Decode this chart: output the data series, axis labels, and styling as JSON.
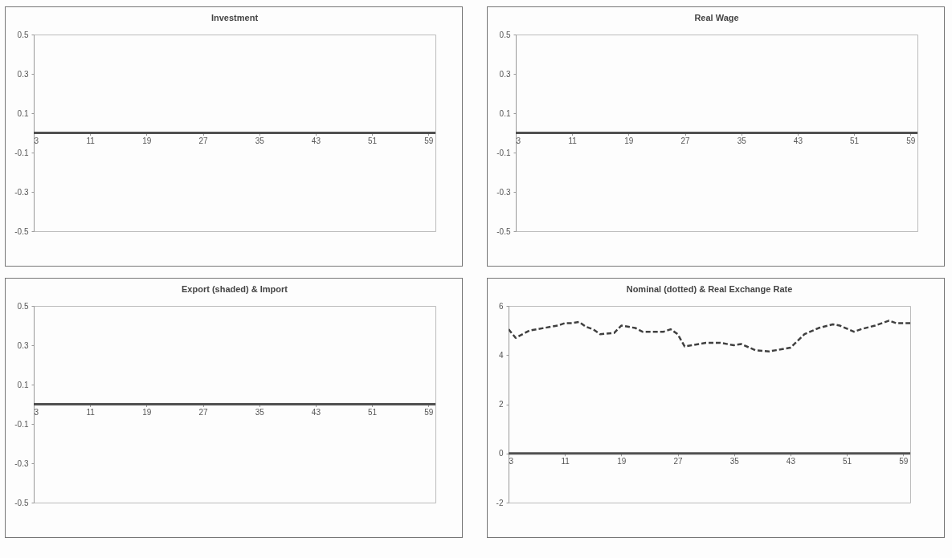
{
  "chart_data": [
    {
      "type": "line",
      "title": "Investment",
      "xlim": [
        3,
        60
      ],
      "xticks": [
        3,
        11,
        19,
        27,
        35,
        43,
        51,
        59
      ],
      "ylim": [
        -0.5,
        0.5
      ],
      "yticks": [
        -0.5,
        -0.3,
        -0.1,
        0.1,
        0.3,
        0.5
      ],
      "series": [
        {
          "color": "#505050",
          "x": [
            3,
            60
          ],
          "values": [
            0,
            0
          ]
        }
      ]
    },
    {
      "type": "line",
      "title": "Real Wage",
      "xlim": [
        3,
        60
      ],
      "xticks": [
        3,
        11,
        19,
        27,
        35,
        43,
        51,
        59
      ],
      "ylim": [
        -0.5,
        0.5
      ],
      "yticks": [
        -0.5,
        -0.3,
        -0.1,
        0.1,
        0.3,
        0.5
      ],
      "series": [
        {
          "color": "#505050",
          "x": [
            3,
            60
          ],
          "values": [
            0,
            0
          ]
        }
      ]
    },
    {
      "type": "line",
      "title": "Export (shaded) & Import",
      "xlim": [
        3,
        60
      ],
      "xticks": [
        3,
        11,
        19,
        27,
        35,
        43,
        51,
        59
      ],
      "ylim": [
        -0.5,
        0.5
      ],
      "yticks": [
        -0.5,
        -0.3,
        -0.1,
        0.1,
        0.3,
        0.5
      ],
      "series": [
        {
          "color": "#505050",
          "x": [
            3,
            60
          ],
          "values": [
            0,
            0
          ]
        }
      ]
    },
    {
      "type": "line",
      "title": "Nominal (dotted) & Real Exchange Rate",
      "xlim": [
        3,
        60
      ],
      "xticks": [
        3,
        11,
        19,
        27,
        35,
        43,
        51,
        59
      ],
      "ylim": [
        -2,
        6
      ],
      "yticks": [
        -2,
        0,
        2,
        4,
        6
      ],
      "series": [
        {
          "color": "#404040",
          "line_style": "dashed",
          "x": [
            3,
            4,
            6,
            8,
            10,
            11,
            12,
            13,
            14,
            15,
            16,
            18,
            19,
            21,
            22,
            25,
            26,
            27,
            28,
            29,
            31,
            33,
            35,
            36,
            38,
            40,
            41,
            43,
            45,
            47,
            49,
            50,
            52,
            53,
            55,
            57,
            58,
            60
          ],
          "values": [
            5.05,
            4.7,
            5.0,
            5.1,
            5.2,
            5.3,
            5.3,
            5.35,
            5.15,
            5.05,
            4.85,
            4.9,
            5.2,
            5.1,
            4.95,
            4.95,
            5.05,
            4.85,
            4.35,
            4.4,
            4.5,
            4.5,
            4.4,
            4.45,
            4.2,
            4.15,
            4.2,
            4.3,
            4.85,
            5.1,
            5.25,
            5.2,
            4.95,
            5.05,
            5.2,
            5.4,
            5.3,
            5.3
          ]
        },
        {
          "color": "#505050",
          "x": [
            3,
            60
          ],
          "values": [
            0,
            0
          ]
        }
      ]
    }
  ]
}
